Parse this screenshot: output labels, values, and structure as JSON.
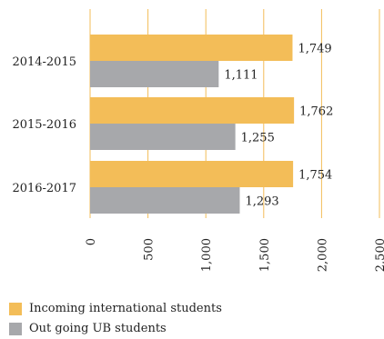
{
  "chart_data": {
    "type": "bar",
    "orientation": "horizontal",
    "categories": [
      "2014-2015",
      "2015-2016",
      "2016-2017"
    ],
    "series": [
      {
        "name": "Incoming international students",
        "values": [
          1749,
          1762,
          1754
        ],
        "labels": [
          "1,749",
          "1,762",
          "1,754"
        ],
        "color": "#f3bd58"
      },
      {
        "name": "Out going UB students",
        "values": [
          1111,
          1255,
          1293
        ],
        "labels": [
          "1,111",
          "1,255",
          "1,293"
        ],
        "color": "#a7a8ab"
      }
    ],
    "xlim": [
      0,
      2500
    ],
    "xticks": [
      0,
      500,
      1000,
      1500,
      2000,
      2500
    ],
    "xtick_labels": [
      "0",
      "500",
      "1,000",
      "1,500",
      "2,000",
      "2,500"
    ],
    "grid_color": "#f3bd58",
    "legend_position": "bottom-left"
  }
}
